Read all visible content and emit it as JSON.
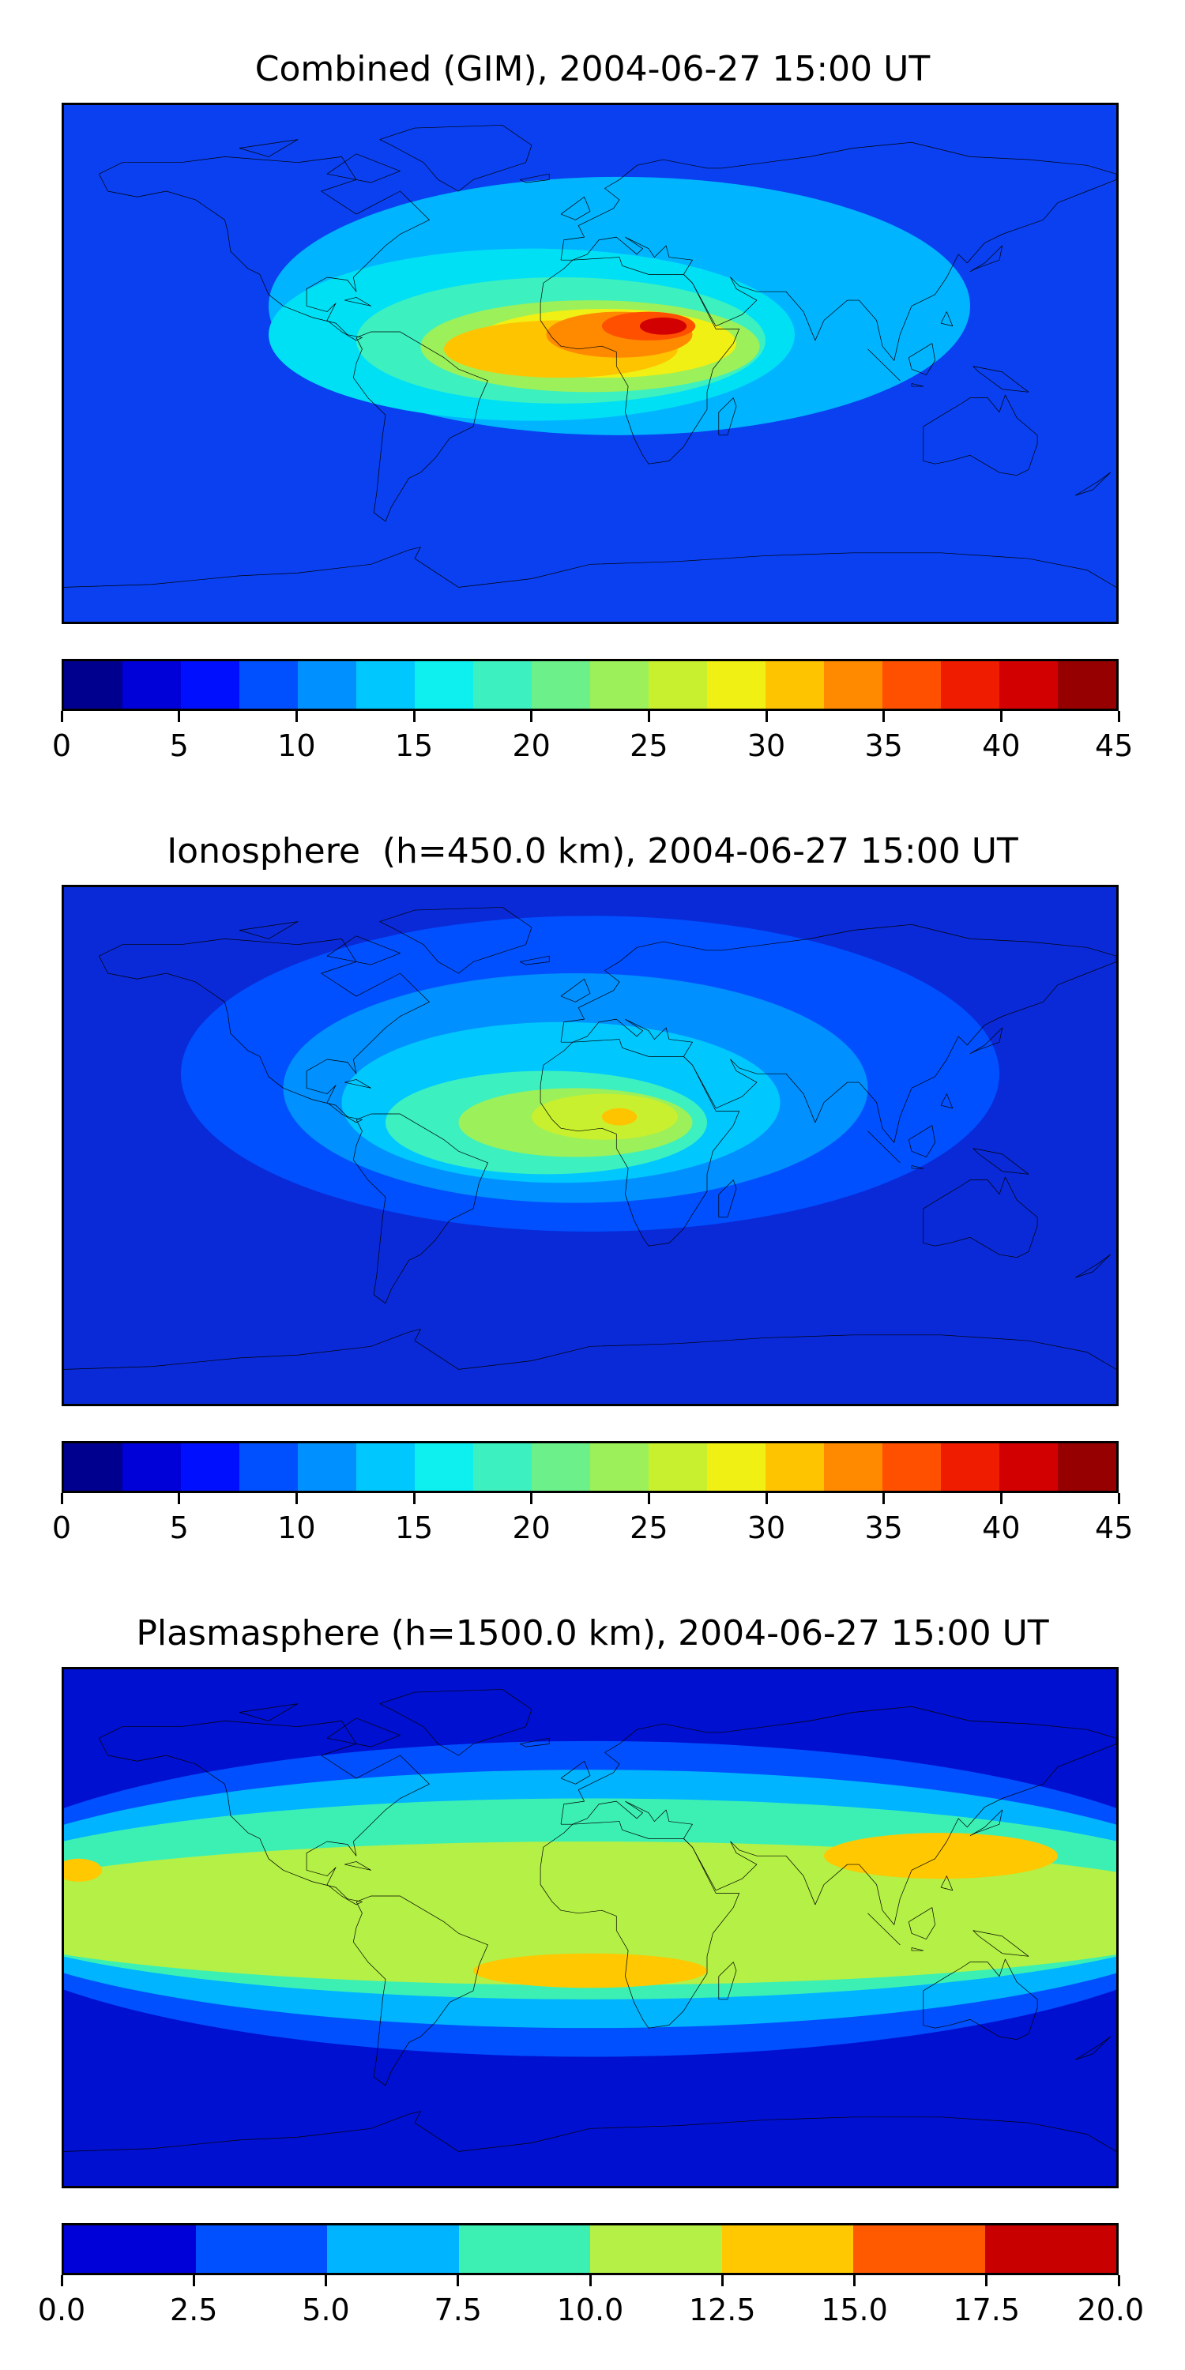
{
  "panels": [
    {
      "title": "Combined (GIM), 2004-06-27 15:00 UT",
      "colormap": [
        "#00008f",
        "#0000d9",
        "#0010ff",
        "#0050ff",
        "#0090ff",
        "#00c8ff",
        "#0ef0f0",
        "#3cf0c0",
        "#6cf08a",
        "#9cf05a",
        "#c8f02e",
        "#f0f014",
        "#ffc400",
        "#ff8a00",
        "#ff5000",
        "#f01c00",
        "#d20000",
        "#960000"
      ],
      "ticks": [
        "0",
        "5",
        "10",
        "15",
        "20",
        "25",
        "30",
        "35",
        "40",
        "45"
      ],
      "range": [
        0,
        45
      ],
      "background": "#0a40f0",
      "blobs": [
        {
          "color": "#00b4ff",
          "lon": 10,
          "lat": 20,
          "rlon": 120,
          "rlat": 45
        },
        {
          "color": "#00e0f5",
          "lon": -20,
          "lat": 10,
          "rlon": 90,
          "rlat": 30
        },
        {
          "color": "#3cf0c0",
          "lon": -10,
          "lat": 8,
          "rlon": 70,
          "rlat": 22
        },
        {
          "color": "#9cf05a",
          "lon": 0,
          "lat": 6,
          "rlon": 58,
          "rlat": 16
        },
        {
          "color": "#f0f014",
          "lon": 5,
          "lat": 7,
          "rlon": 45,
          "rlat": 12
        },
        {
          "color": "#ffc400",
          "lon": -10,
          "lat": 5,
          "rlon": 40,
          "rlat": 10
        },
        {
          "color": "#ff8a00",
          "lon": 10,
          "lat": 10,
          "rlon": 25,
          "rlat": 8
        },
        {
          "color": "#ff5000",
          "lon": 20,
          "lat": 13,
          "rlon": 16,
          "rlat": 5
        },
        {
          "color": "#d20000",
          "lon": 25,
          "lat": 13,
          "rlon": 8,
          "rlat": 3
        }
      ]
    },
    {
      "title": "Ionosphere  (h=450.0 km), 2004-06-27 15:00 UT",
      "colormap": [
        "#00008f",
        "#0000d9",
        "#0010ff",
        "#0050ff",
        "#0090ff",
        "#00c8ff",
        "#0ef0f0",
        "#3cf0c0",
        "#6cf08a",
        "#9cf05a",
        "#c8f02e",
        "#f0f014",
        "#ffc400",
        "#ff8a00",
        "#ff5000",
        "#f01c00",
        "#d20000",
        "#960000"
      ],
      "ticks": [
        "0",
        "5",
        "10",
        "15",
        "20",
        "25",
        "30",
        "35",
        "40",
        "45"
      ],
      "range": [
        0,
        45
      ],
      "background": "#0a2ad8",
      "blobs": [
        {
          "color": "#0050ff",
          "lon": 0,
          "lat": 25,
          "rlon": 140,
          "rlat": 55
        },
        {
          "color": "#0090ff",
          "lon": -5,
          "lat": 20,
          "rlon": 100,
          "rlat": 40
        },
        {
          "color": "#00c8ff",
          "lon": -10,
          "lat": 15,
          "rlon": 75,
          "rlat": 28
        },
        {
          "color": "#3cf0c0",
          "lon": -15,
          "lat": 8,
          "rlon": 55,
          "rlat": 18
        },
        {
          "color": "#9cf05a",
          "lon": -5,
          "lat": 8,
          "rlon": 40,
          "rlat": 12
        },
        {
          "color": "#c8f02e",
          "lon": 5,
          "lat": 10,
          "rlon": 25,
          "rlat": 8
        },
        {
          "color": "#ffc400",
          "lon": 10,
          "lat": 10,
          "rlon": 6,
          "rlat": 3
        }
      ]
    },
    {
      "title": "Plasmasphere (h=1500.0 km), 2004-06-27 15:00 UT",
      "colormap": [
        "#0000d9",
        "#0050ff",
        "#00b4ff",
        "#3cf0b4",
        "#b4f046",
        "#ffc800",
        "#ff5a00",
        "#c80000"
      ],
      "ticks": [
        "0.0",
        "2.5",
        "5.0",
        "7.5",
        "10.0",
        "12.5",
        "15.0",
        "17.5",
        "20.0"
      ],
      "range": [
        0,
        20
      ],
      "background": "#0010d0",
      "blobs": [
        {
          "color": "#0050ff",
          "lon": 0,
          "lat": 10,
          "rlon": 220,
          "rlat": 55
        },
        {
          "color": "#00b4ff",
          "lon": 0,
          "lat": 10,
          "rlon": 220,
          "rlat": 45
        },
        {
          "color": "#3cf0b4",
          "lon": 0,
          "lat": 10,
          "rlon": 220,
          "rlat": 35
        },
        {
          "color": "#b4f046",
          "lon": 0,
          "lat": 5,
          "rlon": 220,
          "rlat": 25
        },
        {
          "color": "#ffc800",
          "lon": 120,
          "lat": 25,
          "rlon": 40,
          "rlat": 8
        },
        {
          "color": "#ffc800",
          "lon": 0,
          "lat": -15,
          "rlon": 40,
          "rlat": 6
        },
        {
          "color": "#ffc800",
          "lon": -175,
          "lat": 20,
          "rlon": 8,
          "rlat": 4
        }
      ]
    }
  ]
}
